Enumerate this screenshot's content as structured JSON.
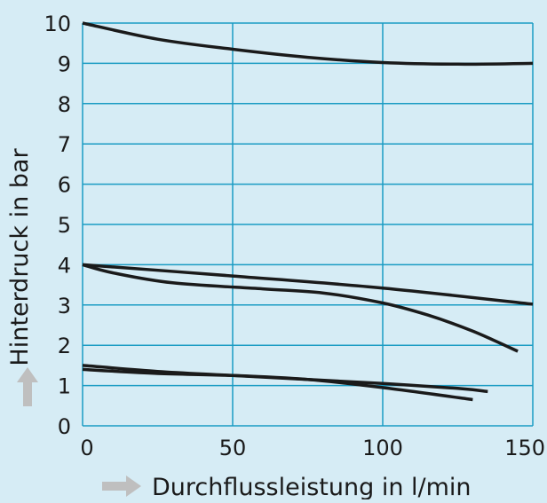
{
  "chart_data": {
    "type": "line",
    "xlabel": "Durchflussleistung in l/min",
    "ylabel": "Hinterdruck in bar",
    "xlim": [
      0,
      150
    ],
    "ylim": [
      0,
      10
    ],
    "x_ticks": [
      "0",
      "50",
      "100",
      "150"
    ],
    "y_ticks": [
      "0",
      "1",
      "2",
      "3",
      "4",
      "5",
      "6",
      "7",
      "8",
      "9",
      "10"
    ],
    "grid": true,
    "colors": {
      "background": "#d6ecf5",
      "grid": "#1a9bc3",
      "line": "#1a1a1a",
      "arrow": "#bfbfbf"
    },
    "series": [
      {
        "x": [
          0,
          25,
          50,
          75,
          100,
          125,
          150
        ],
        "y": [
          10,
          9.6,
          9.35,
          9.15,
          9.02,
          8.98,
          9.0
        ]
      },
      {
        "x": [
          0,
          50,
          100,
          150
        ],
        "y": [
          4.0,
          3.72,
          3.42,
          3.02
        ]
      },
      {
        "x": [
          0,
          10,
          30,
          60,
          80,
          100,
          115,
          130,
          145
        ],
        "y": [
          4.0,
          3.8,
          3.55,
          3.4,
          3.3,
          3.05,
          2.75,
          2.35,
          1.85
        ]
      },
      {
        "x": [
          0,
          25,
          50,
          75,
          100,
          125,
          135
        ],
        "y": [
          1.5,
          1.35,
          1.25,
          1.15,
          1.05,
          0.93,
          0.85
        ]
      },
      {
        "x": [
          0,
          25,
          50,
          75,
          100,
          130
        ],
        "y": [
          1.4,
          1.3,
          1.25,
          1.15,
          0.95,
          0.65
        ]
      }
    ]
  }
}
